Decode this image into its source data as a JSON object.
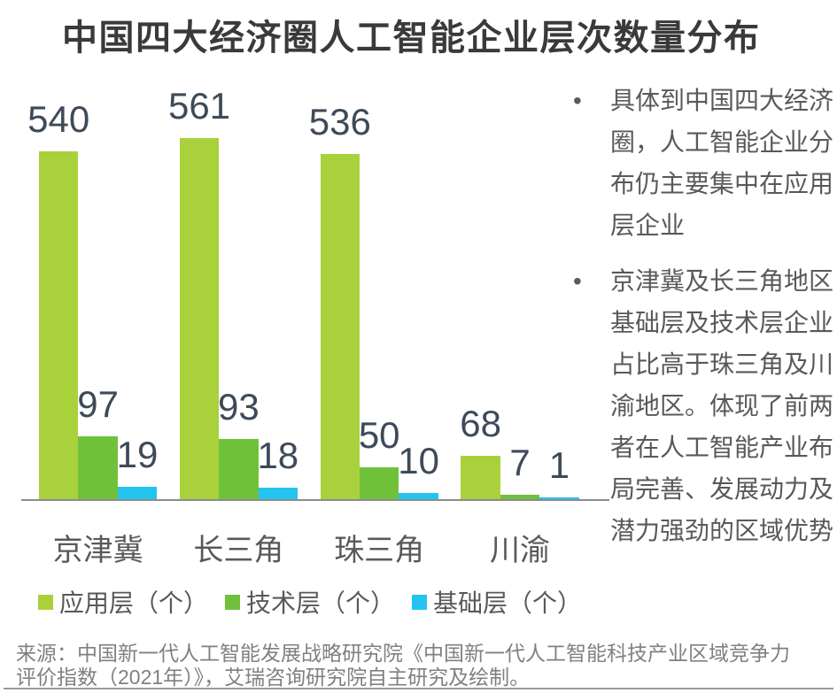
{
  "title": "中国四大经济圈人工智能企业层次数量分布",
  "chart_data": {
    "type": "bar",
    "title": "中国四大经济圈人工智能企业层次数量分布",
    "categories": [
      "京津冀",
      "长三角",
      "珠三角",
      "川渝"
    ],
    "series": [
      {
        "key": "application-layer",
        "name": "应用层（个）",
        "color": "#a8d13c",
        "values": [
          540,
          561,
          536,
          68
        ]
      },
      {
        "key": "technology-layer",
        "name": "技术层（个）",
        "color": "#6fc13a",
        "values": [
          97,
          93,
          50,
          7
        ]
      },
      {
        "key": "basic-layer",
        "name": "基础层（个）",
        "color": "#23c4f0",
        "values": [
          19,
          18,
          10,
          1
        ]
      }
    ],
    "xlabel": "",
    "ylabel": "",
    "ylim": [
      0,
      580
    ],
    "grid": false,
    "y_axis_visible": false,
    "value_labels": true,
    "legend_position": "bottom"
  },
  "insights": {
    "items": [
      {
        "lines": [
          "具体到中国四大经济",
          "圈，人工智能企业分",
          "布仍主要集中在应用",
          "层企业"
        ]
      },
      {
        "lines": [
          "京津冀及长三角地区",
          "基础层及技术层企业",
          "占比高于珠三角及川",
          "渝地区。体现了前两",
          "者在人工智能产业布",
          "局完善、发展动力及",
          "潜力强劲的区域优势"
        ]
      }
    ]
  },
  "source": {
    "lines": [
      "来源：中国新一代人工智能发展战略研究院《中国新一代人工智能科技产业区域竞争力",
      "评价指数（2021年）》，艾瑞咨询研究院自主研究及绘制。"
    ]
  },
  "colors": {
    "title_text": "#3a3a3a",
    "value_label_text": "#3e4a59",
    "category_text": "#595959",
    "legend_text": "#595959",
    "insight_text": "#595959",
    "source_text": "#808080",
    "axis_line": "#8c8c8c",
    "divider_line": "#9b9b9b"
  }
}
